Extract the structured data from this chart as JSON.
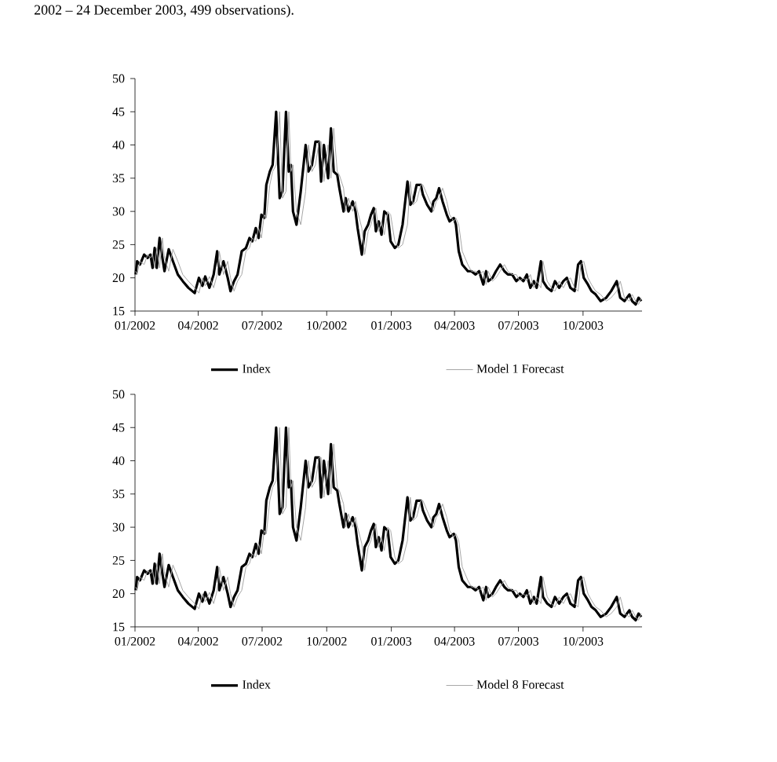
{
  "chart_data": [
    {
      "type": "line",
      "annotations": [
        "2002 – 24 December 2003, 499 observations)."
      ],
      "x": [
        "2002-01-02",
        "2002-01-04",
        "2002-01-08",
        "2002-01-14",
        "2002-01-19",
        "2002-01-23",
        "2002-01-26",
        "2002-01-29",
        "2002-02-01",
        "2002-02-05",
        "2002-02-09",
        "2002-02-12",
        "2002-02-18",
        "2002-02-24",
        "2002-03-03",
        "2002-03-10",
        "2002-03-18",
        "2002-03-27",
        "2002-04-02",
        "2002-04-07",
        "2002-04-11",
        "2002-04-17",
        "2002-04-23",
        "2002-04-28",
        "2002-05-01",
        "2002-05-07",
        "2002-05-13",
        "2002-05-17",
        "2002-05-22",
        "2002-05-27",
        "2002-06-02",
        "2002-06-08",
        "2002-06-13",
        "2002-06-17",
        "2002-06-22",
        "2002-06-26",
        "2002-06-30",
        "2002-07-04",
        "2002-07-07",
        "2002-07-12",
        "2002-07-16",
        "2002-07-21",
        "2002-07-26",
        "2002-07-30",
        "2002-08-04",
        "2002-08-08",
        "2002-08-11",
        "2002-08-14",
        "2002-08-19",
        "2002-08-25",
        "2002-09-01",
        "2002-09-05",
        "2002-09-10",
        "2002-09-15",
        "2002-09-20",
        "2002-09-23",
        "2002-09-27",
        "2002-10-03",
        "2002-10-07",
        "2002-10-11",
        "2002-10-16",
        "2002-10-19",
        "2002-10-25",
        "2002-10-28",
        "2002-11-01",
        "2002-11-07",
        "2002-11-11",
        "2002-11-14",
        "2002-11-20",
        "2002-11-24",
        "2002-11-29",
        "2002-12-03",
        "2002-12-07",
        "2002-12-10",
        "2002-12-14",
        "2002-12-18",
        "2002-12-22",
        "2002-12-27",
        "2002-12-31",
        "2003-01-06",
        "2003-01-11",
        "2003-01-17",
        "2003-01-24",
        "2003-01-28",
        "2003-02-01",
        "2003-02-06",
        "2003-02-12",
        "2003-02-15",
        "2003-02-21",
        "2003-02-27",
        "2003-03-02",
        "2003-03-06",
        "2003-03-10",
        "2003-03-15",
        "2003-03-21",
        "2003-03-25",
        "2003-03-31",
        "2003-04-03",
        "2003-04-07",
        "2003-04-12",
        "2003-04-20",
        "2003-04-25",
        "2003-05-01",
        "2003-05-06",
        "2003-05-12",
        "2003-05-16",
        "2003-05-19",
        "2003-05-25",
        "2003-05-30",
        "2003-06-05",
        "2003-06-11",
        "2003-06-16",
        "2003-06-22",
        "2003-06-28",
        "2003-07-03",
        "2003-07-08",
        "2003-07-13",
        "2003-07-18",
        "2003-07-23",
        "2003-07-27",
        "2003-08-02",
        "2003-08-05",
        "2003-08-11",
        "2003-08-17",
        "2003-08-22",
        "2003-08-28",
        "2003-09-03",
        "2003-09-08",
        "2003-09-13",
        "2003-09-19",
        "2003-09-24",
        "2003-09-28",
        "2003-10-02",
        "2003-10-08",
        "2003-10-13",
        "2003-10-19",
        "2003-10-26",
        "2003-11-03",
        "2003-11-10",
        "2003-11-18",
        "2003-11-23",
        "2003-11-29",
        "2003-12-06",
        "2003-12-10",
        "2003-12-15",
        "2003-12-19",
        "2003-12-23"
      ],
      "series": [
        {
          "name": "Index",
          "color": "#000000",
          "values": [
            20.5,
            22.5,
            22,
            23.5,
            23,
            23.5,
            21.5,
            24.5,
            21.5,
            26,
            23,
            21,
            24.3,
            22.5,
            20.5,
            19.5,
            18.5,
            17.7,
            20,
            18.8,
            20.2,
            18.5,
            20.5,
            24,
            20.5,
            22.5,
            20,
            18,
            19.5,
            20.5,
            24,
            24.5,
            26,
            25.5,
            27.5,
            26,
            29.5,
            29,
            34,
            36,
            37,
            45,
            32,
            33,
            45,
            36,
            37,
            30,
            28,
            33,
            40,
            36,
            37,
            40.5,
            40.5,
            34.5,
            40,
            35,
            42.5,
            36,
            35.5,
            33.5,
            30,
            32,
            30,
            31.5,
            30,
            27.5,
            23.5,
            27,
            28,
            29.5,
            30.5,
            27,
            28.5,
            26.5,
            30,
            29.5,
            25.5,
            24.5,
            25,
            28,
            34.5,
            31,
            31.5,
            34,
            34,
            32.5,
            31,
            30,
            31.5,
            32,
            33.5,
            31.5,
            29.5,
            28.5,
            29,
            28,
            24,
            22,
            21,
            21,
            20.5,
            21,
            19,
            21,
            19.5,
            20,
            21,
            22,
            21,
            20.5,
            20.5,
            19.5,
            20,
            19.5,
            20.5,
            18.5,
            19.5,
            18.5,
            22.5,
            19.5,
            18.5,
            18,
            19.5,
            18.5,
            19.5,
            20,
            18.5,
            18,
            22,
            22.5,
            20,
            19,
            18,
            17.5,
            16.5,
            17,
            18,
            19.5,
            17,
            16.5,
            17.5,
            16.5,
            16,
            17,
            16.5
          ]
        },
        {
          "name": "Model 1 Forecast",
          "color": "#a6a6a6",
          "values": [
            21,
            20.5,
            22.5,
            22,
            23.5,
            23,
            23.5,
            21.5,
            24.5,
            21.5,
            26,
            23,
            21,
            24.3,
            22.5,
            20.5,
            19.5,
            18.5,
            17.7,
            20,
            18.8,
            20.2,
            18.5,
            20.5,
            24,
            20.5,
            22.5,
            20,
            18,
            19.5,
            20.5,
            24,
            24.5,
            26,
            25.5,
            27.5,
            26,
            29.5,
            29,
            34,
            36,
            37,
            45,
            32,
            33,
            45,
            36,
            37,
            30,
            28,
            33,
            40,
            36,
            37,
            40.5,
            40.5,
            34.5,
            40,
            35,
            42.5,
            36,
            35.5,
            33.5,
            30,
            32,
            30,
            31.5,
            30,
            27.5,
            23.5,
            27,
            28,
            29.5,
            30.5,
            27,
            28.5,
            26.5,
            30,
            29.5,
            25.5,
            24.5,
            25,
            28,
            34.5,
            31,
            31.5,
            34,
            34,
            32.5,
            31,
            30,
            31.5,
            32,
            33.5,
            31.5,
            29.5,
            28.5,
            29,
            28,
            24,
            22,
            21,
            21,
            20.5,
            21,
            19,
            21,
            19.5,
            20,
            21,
            22,
            21,
            20.5,
            20.5,
            19.5,
            20,
            19.5,
            20.5,
            18.5,
            19.5,
            18.5,
            22.5,
            19.5,
            18.5,
            18,
            19.5,
            18.5,
            19.5,
            20,
            18.5,
            18,
            22,
            22.5,
            20,
            19,
            18,
            17.5,
            16.5,
            17,
            18,
            19.5,
            17,
            16.5,
            17.5,
            16.5,
            16,
            17
          ]
        }
      ],
      "xlim": [
        "2002-01-01",
        "2003-12-24"
      ],
      "xticks": [
        {
          "value": "2002-01-01",
          "label": "01/2002"
        },
        {
          "value": "2002-04-01",
          "label": "04/2002"
        },
        {
          "value": "2002-07-01",
          "label": "07/2002"
        },
        {
          "value": "2002-10-01",
          "label": "10/2002"
        },
        {
          "value": "2003-01-01",
          "label": "01/2003"
        },
        {
          "value": "2003-04-01",
          "label": "04/2003"
        },
        {
          "value": "2003-07-01",
          "label": "07/2003"
        },
        {
          "value": "2003-10-01",
          "label": "10/2003"
        }
      ],
      "ylim": [
        15,
        50
      ],
      "yticks": [
        15,
        20,
        25,
        30,
        35,
        40,
        45,
        50
      ],
      "legend": "bottom",
      "marker": "none",
      "line_style": "solid",
      "grid": false
    },
    {
      "type": "line",
      "x": [
        "2002-01-02",
        "2002-01-04",
        "2002-01-08",
        "2002-01-14",
        "2002-01-19",
        "2002-01-23",
        "2002-01-26",
        "2002-01-29",
        "2002-02-01",
        "2002-02-05",
        "2002-02-09",
        "2002-02-12",
        "2002-02-18",
        "2002-02-24",
        "2002-03-03",
        "2002-03-10",
        "2002-03-18",
        "2002-03-27",
        "2002-04-02",
        "2002-04-07",
        "2002-04-11",
        "2002-04-17",
        "2002-04-23",
        "2002-04-28",
        "2002-05-01",
        "2002-05-07",
        "2002-05-13",
        "2002-05-17",
        "2002-05-22",
        "2002-05-27",
        "2002-06-02",
        "2002-06-08",
        "2002-06-13",
        "2002-06-17",
        "2002-06-22",
        "2002-06-26",
        "2002-06-30",
        "2002-07-04",
        "2002-07-07",
        "2002-07-12",
        "2002-07-16",
        "2002-07-21",
        "2002-07-26",
        "2002-07-30",
        "2002-08-04",
        "2002-08-08",
        "2002-08-11",
        "2002-08-14",
        "2002-08-19",
        "2002-08-25",
        "2002-09-01",
        "2002-09-05",
        "2002-09-10",
        "2002-09-15",
        "2002-09-20",
        "2002-09-23",
        "2002-09-27",
        "2002-10-03",
        "2002-10-07",
        "2002-10-11",
        "2002-10-16",
        "2002-10-19",
        "2002-10-25",
        "2002-10-28",
        "2002-11-01",
        "2002-11-07",
        "2002-11-11",
        "2002-11-14",
        "2002-11-20",
        "2002-11-24",
        "2002-11-29",
        "2002-12-03",
        "2002-12-07",
        "2002-12-10",
        "2002-12-14",
        "2002-12-18",
        "2002-12-22",
        "2002-12-27",
        "2002-12-31",
        "2003-01-06",
        "2003-01-11",
        "2003-01-17",
        "2003-01-24",
        "2003-01-28",
        "2003-02-01",
        "2003-02-06",
        "2003-02-12",
        "2003-02-15",
        "2003-02-21",
        "2003-02-27",
        "2003-03-02",
        "2003-03-06",
        "2003-03-10",
        "2003-03-15",
        "2003-03-21",
        "2003-03-25",
        "2003-03-31",
        "2003-04-03",
        "2003-04-07",
        "2003-04-12",
        "2003-04-20",
        "2003-04-25",
        "2003-05-01",
        "2003-05-06",
        "2003-05-12",
        "2003-05-16",
        "2003-05-19",
        "2003-05-25",
        "2003-05-30",
        "2003-06-05",
        "2003-06-11",
        "2003-06-16",
        "2003-06-22",
        "2003-06-28",
        "2003-07-03",
        "2003-07-08",
        "2003-07-13",
        "2003-07-18",
        "2003-07-23",
        "2003-07-27",
        "2003-08-02",
        "2003-08-05",
        "2003-08-11",
        "2003-08-17",
        "2003-08-22",
        "2003-08-28",
        "2003-09-03",
        "2003-09-08",
        "2003-09-13",
        "2003-09-19",
        "2003-09-24",
        "2003-09-28",
        "2003-10-02",
        "2003-10-08",
        "2003-10-13",
        "2003-10-19",
        "2003-10-26",
        "2003-11-03",
        "2003-11-10",
        "2003-11-18",
        "2003-11-23",
        "2003-11-29",
        "2003-12-06",
        "2003-12-10",
        "2003-12-15",
        "2003-12-19",
        "2003-12-23"
      ],
      "series": [
        {
          "name": "Index",
          "color": "#000000",
          "values": [
            20.5,
            22.5,
            22,
            23.5,
            23,
            23.5,
            21.5,
            24.5,
            21.5,
            26,
            23,
            21,
            24.3,
            22.5,
            20.5,
            19.5,
            18.5,
            17.7,
            20,
            18.8,
            20.2,
            18.5,
            20.5,
            24,
            20.5,
            22.5,
            20,
            18,
            19.5,
            20.5,
            24,
            24.5,
            26,
            25.5,
            27.5,
            26,
            29.5,
            29,
            34,
            36,
            37,
            45,
            32,
            33,
            45,
            36,
            37,
            30,
            28,
            33,
            40,
            36,
            37,
            40.5,
            40.5,
            34.5,
            40,
            35,
            42.5,
            36,
            35.5,
            33.5,
            30,
            32,
            30,
            31.5,
            30,
            27.5,
            23.5,
            27,
            28,
            29.5,
            30.5,
            27,
            28.5,
            26.5,
            30,
            29.5,
            25.5,
            24.5,
            25,
            28,
            34.5,
            31,
            31.5,
            34,
            34,
            32.5,
            31,
            30,
            31.5,
            32,
            33.5,
            31.5,
            29.5,
            28.5,
            29,
            28,
            24,
            22,
            21,
            21,
            20.5,
            21,
            19,
            21,
            19.5,
            20,
            21,
            22,
            21,
            20.5,
            20.5,
            19.5,
            20,
            19.5,
            20.5,
            18.5,
            19.5,
            18.5,
            22.5,
            19.5,
            18.5,
            18,
            19.5,
            18.5,
            19.5,
            20,
            18.5,
            18,
            22,
            22.5,
            20,
            19,
            18,
            17.5,
            16.5,
            17,
            18,
            19.5,
            17,
            16.5,
            17.5,
            16.5,
            16,
            17,
            16.5
          ]
        },
        {
          "name": "Model 8 Forecast",
          "color": "#a6a6a6",
          "values": [
            21,
            20.5,
            22.5,
            22,
            23.5,
            23,
            23.5,
            21.5,
            24.5,
            21.5,
            26,
            23,
            21,
            24.3,
            22.5,
            20.5,
            19.5,
            18.5,
            17.7,
            20,
            18.8,
            20.2,
            18.5,
            20.5,
            24,
            20.5,
            22.5,
            20,
            18,
            19.5,
            20.5,
            24,
            24.5,
            26,
            25.5,
            27.5,
            26,
            29.5,
            29,
            34,
            36,
            37,
            45,
            32,
            33,
            45,
            36,
            37,
            30,
            28,
            33,
            40,
            36,
            37,
            40.5,
            40.5,
            34.5,
            40,
            35,
            42.5,
            36,
            35.5,
            33.5,
            30,
            32,
            30,
            31.5,
            30,
            27.5,
            23.5,
            27,
            28,
            29.5,
            30.5,
            27,
            28.5,
            26.5,
            30,
            29.5,
            25.5,
            24.5,
            25,
            28,
            34.5,
            31,
            31.5,
            34,
            34,
            32.5,
            31,
            30,
            31.5,
            32,
            33.5,
            31.5,
            29.5,
            28.5,
            29,
            28,
            24,
            22,
            21,
            21,
            20.5,
            21,
            19,
            21,
            19.5,
            20,
            21,
            22,
            21,
            20.5,
            20.5,
            19.5,
            20,
            19.5,
            20.5,
            18.5,
            19.5,
            18.5,
            22.5,
            19.5,
            18.5,
            18,
            19.5,
            18.5,
            19.5,
            20,
            18.5,
            18,
            22,
            22.5,
            20,
            19,
            18,
            17.5,
            16.5,
            17,
            18,
            19.5,
            17,
            16.5,
            17.5,
            16.5,
            16,
            17
          ]
        }
      ],
      "xlim": [
        "2002-01-01",
        "2003-12-24"
      ],
      "xticks": [
        {
          "value": "2002-01-01",
          "label": "01/2002"
        },
        {
          "value": "2002-04-01",
          "label": "04/2002"
        },
        {
          "value": "2002-07-01",
          "label": "07/2002"
        },
        {
          "value": "2002-10-01",
          "label": "10/2002"
        },
        {
          "value": "2003-01-01",
          "label": "01/2003"
        },
        {
          "value": "2003-04-01",
          "label": "04/2003"
        },
        {
          "value": "2003-07-01",
          "label": "07/2003"
        },
        {
          "value": "2003-10-01",
          "label": "10/2003"
        }
      ],
      "ylim": [
        15,
        50
      ],
      "yticks": [
        15,
        20,
        25,
        30,
        35,
        40,
        45,
        50
      ],
      "legend": "bottom",
      "marker": "none",
      "line_style": "solid",
      "grid": false
    }
  ]
}
